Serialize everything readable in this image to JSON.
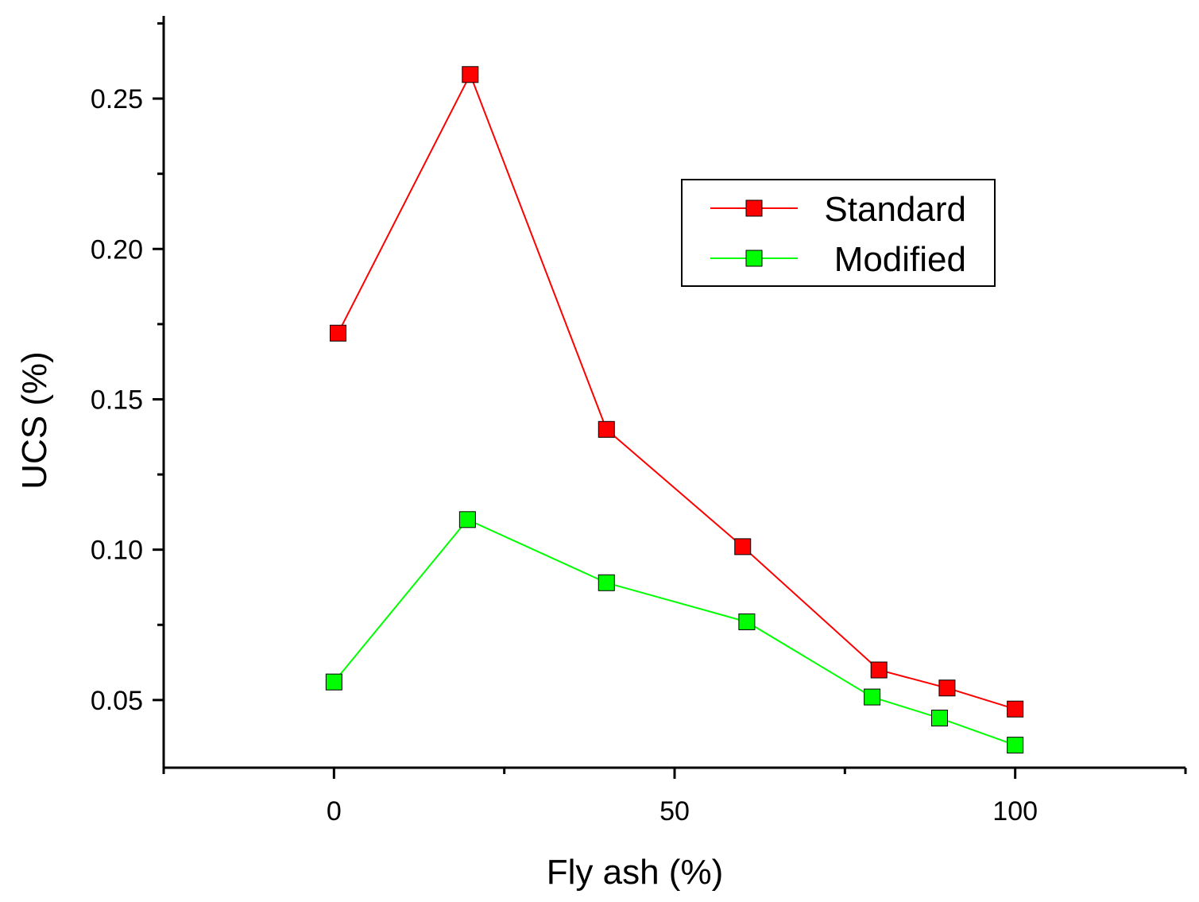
{
  "chart_data": {
    "type": "line",
    "title": "",
    "xlabel": "Fly ash (%)",
    "ylabel": "UCS (%)",
    "xlim": [
      -25,
      125
    ],
    "ylim": [
      0.0275,
      0.2775
    ],
    "x_major_ticks": [
      0,
      50,
      100
    ],
    "x_minor_ticks": [
      -25,
      25,
      75,
      125
    ],
    "y_major_ticks": [
      0.05,
      0.1,
      0.15,
      0.2,
      0.25
    ],
    "y_minor_ticks": [
      0.075,
      0.125,
      0.175,
      0.225,
      0.275
    ],
    "x_tick_labels": [
      "0",
      "50",
      "100"
    ],
    "y_tick_labels": [
      "0.05",
      "0.10",
      "0.15",
      "0.20",
      "0.25"
    ],
    "grid": false,
    "legend_position": "top-right",
    "series": [
      {
        "name": "Standard",
        "color": "#ff0000",
        "marker": "square",
        "x": [
          0.6,
          20,
          40,
          60,
          80,
          90,
          100
        ],
        "y": [
          0.172,
          0.258,
          0.14,
          0.101,
          0.06,
          0.054,
          0.047
        ]
      },
      {
        "name": "Modified",
        "color": "#00ff00",
        "marker": "square",
        "x": [
          0,
          19.6,
          40,
          60.6,
          79,
          88.9,
          100
        ],
        "y": [
          0.056,
          0.11,
          0.089,
          0.076,
          0.051,
          0.044,
          0.035
        ]
      }
    ]
  }
}
